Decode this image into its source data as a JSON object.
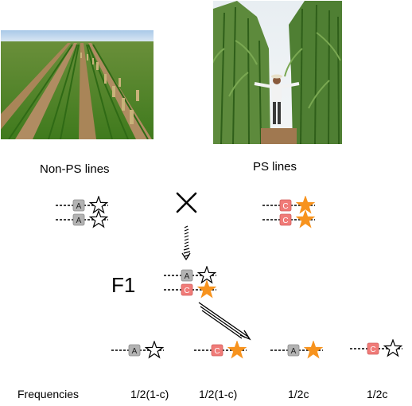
{
  "photos": {
    "left": {
      "description": "Sorghum field with short crop rows"
    },
    "right": {
      "description": "Person standing between tall sorghum plants"
    }
  },
  "labels": {
    "non_ps": "Non-PS lines",
    "ps": "PS lines",
    "f1": "F1",
    "frequencies": "Frequencies"
  },
  "markers": {
    "a": "A",
    "c": "C"
  },
  "freqs": [
    "1/2(1-c)",
    "1/2(1-c)",
    "1/2c",
    "1/2c"
  ],
  "colors": {
    "star_fill": "#f7931e",
    "box_a": "#b3b3b3",
    "box_c": "#f07b78",
    "sky": "#cfe2f3",
    "plant_green": "#3d7a1f",
    "soil": "#a8805a"
  },
  "icons": {
    "cross": "cross-icon",
    "star_outline": "star-outline-icon",
    "star_filled": "star-filled-icon"
  }
}
